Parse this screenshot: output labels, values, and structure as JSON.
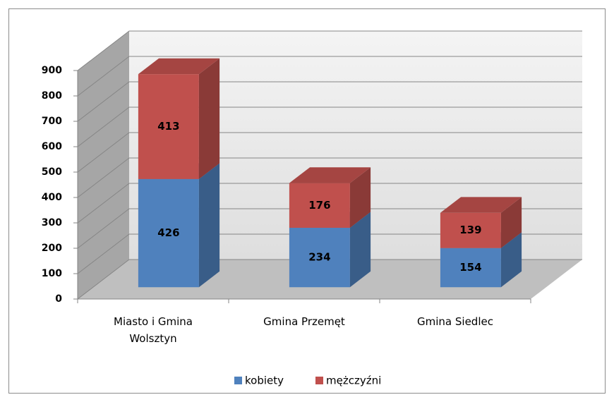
{
  "chart_data": {
    "type": "bar",
    "stacked": true,
    "categories": [
      "Miasto i Gmina Wolsztyn",
      "Gmina Przemęt",
      "Gmina Siedlec"
    ],
    "series": [
      {
        "name": "kobiety",
        "color": "#4f81bd",
        "values": [
          426,
          234,
          154
        ]
      },
      {
        "name": "mężczyźni",
        "color": "#c0504d",
        "values": [
          413,
          176,
          139
        ]
      }
    ],
    "ylim": [
      0,
      900
    ],
    "yticks": [
      0,
      100,
      200,
      300,
      400,
      500,
      600,
      700,
      800,
      900
    ],
    "grid": true,
    "legend": "bottom"
  }
}
